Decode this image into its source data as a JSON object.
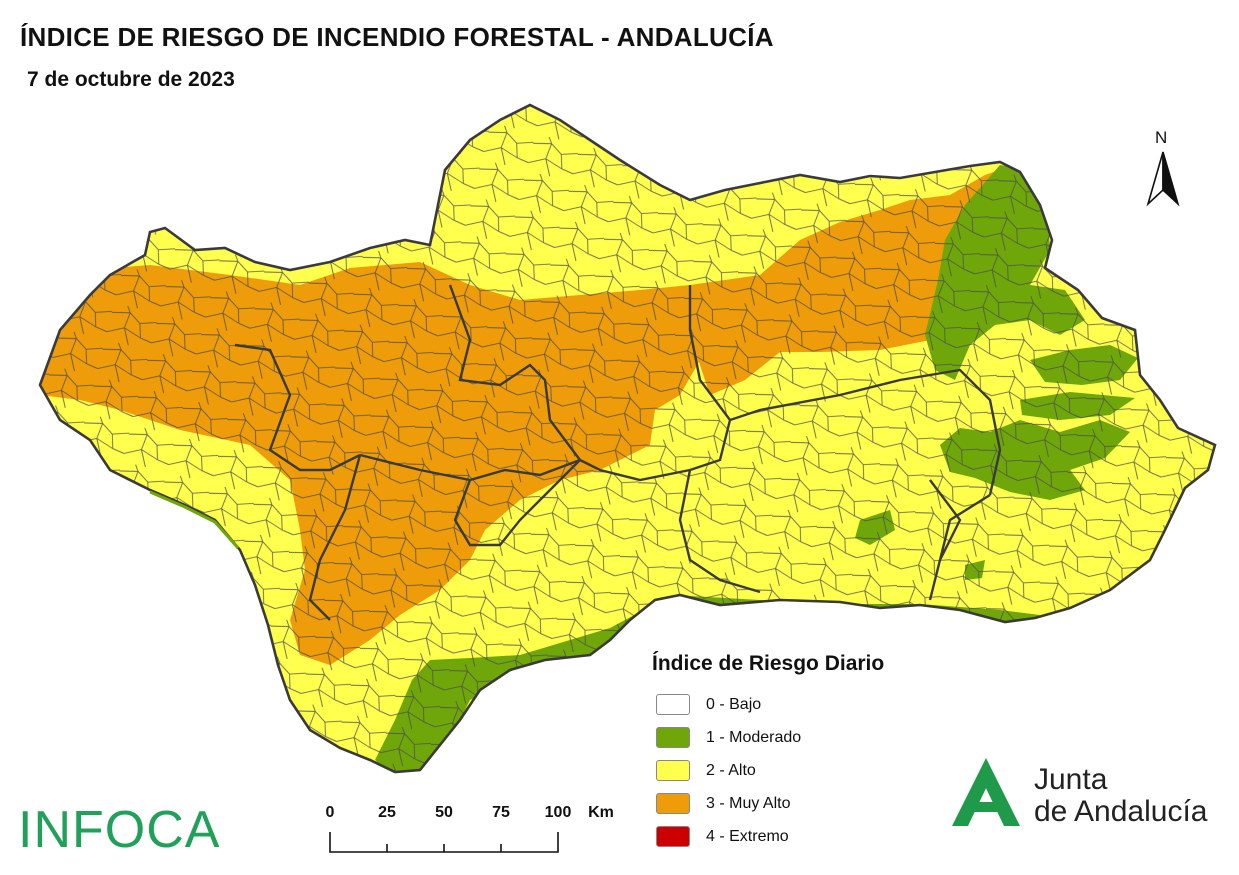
{
  "header": {
    "title": "ÍNDICE DE RIESGO DE INCENDIO FORESTAL - ANDALUCÍA",
    "date": "7 de octubre de 2023"
  },
  "compass": {
    "label": "N"
  },
  "legend": {
    "title": "Índice de Riesgo Diario",
    "items": [
      {
        "label": "0 - Bajo",
        "color": "#ffffff"
      },
      {
        "label": "1 - Moderado",
        "color": "#6fa70a"
      },
      {
        "label": "2 - Alto",
        "color": "#ffff4d"
      },
      {
        "label": "3 - Muy Alto",
        "color": "#ef9c0a"
      },
      {
        "label": "4 - Extremo",
        "color": "#cc0000"
      }
    ]
  },
  "scale": {
    "ticks": [
      "0",
      "25",
      "50",
      "75",
      "100"
    ],
    "unit": "Km"
  },
  "logos": {
    "infoca": "INFOCA",
    "junta_line1": "Junta",
    "junta_line2": "de Andalucía"
  }
}
